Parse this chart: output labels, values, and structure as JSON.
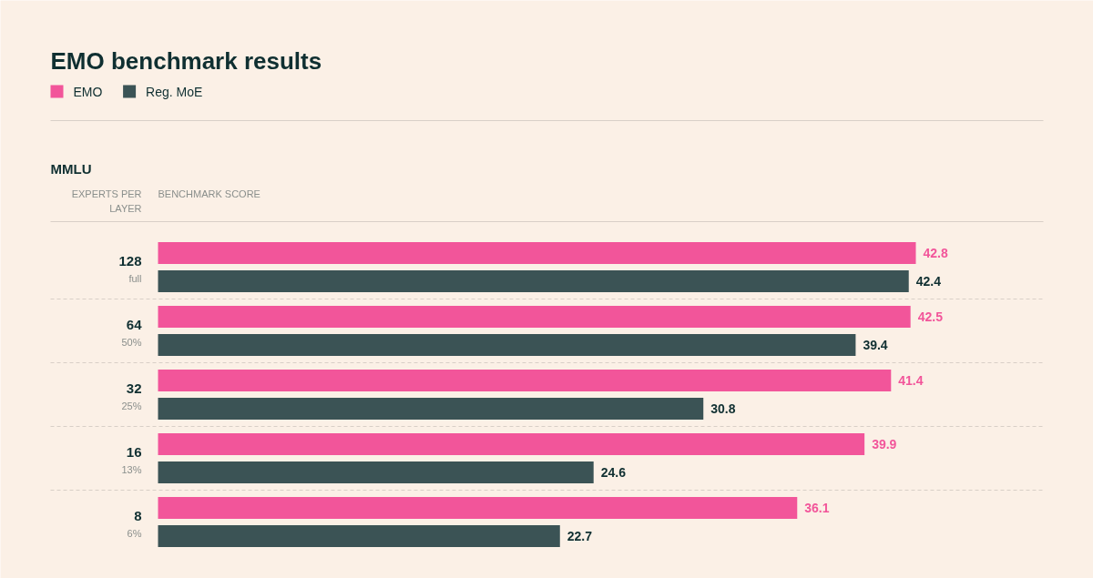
{
  "chart_data": {
    "type": "bar",
    "orientation": "horizontal",
    "title": "EMO benchmark results",
    "subtitle": "MMLU",
    "ylabel": "EXPERTS PER LAYER",
    "xlabel": "BENCHMARK SCORE",
    "categories": [
      "128\nfull",
      "64\n50%",
      "32\n25%",
      "16\n13%",
      "8\n6%"
    ],
    "series": [
      {
        "name": "EMO",
        "color": "#f2559a",
        "values": [
          42.8,
          42.5,
          41.4,
          39.9,
          36.1
        ]
      },
      {
        "name": "Reg. MoE",
        "color": "#3b5355",
        "values": [
          42.4,
          39.4,
          30.8,
          24.6,
          22.7
        ]
      }
    ],
    "legend": "top left",
    "data_labels": true
  }
}
